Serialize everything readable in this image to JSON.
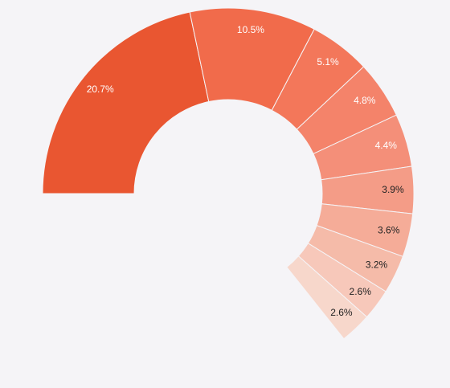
{
  "chart_data": {
    "type": "pie",
    "variant": "donut",
    "title": "",
    "values": [
      20.7,
      10.5,
      5.1,
      4.8,
      4.4,
      3.9,
      3.6,
      3.2,
      2.6,
      2.6
    ],
    "labels": [
      "20.7%",
      "10.5%",
      "5.1%",
      "4.8%",
      "4.4%",
      "3.9%",
      "3.6%",
      "3.2%",
      "2.6%",
      "2.6%"
    ],
    "colors": [
      "#e95631",
      "#f16b4b",
      "#f3775a",
      "#f4836a",
      "#f48f79",
      "#f49c87",
      "#f5ac98",
      "#f5bba9",
      "#f7c8ba",
      "#f7d7cb"
    ],
    "label_colors": [
      "#ffffff",
      "#ffffff",
      "#ffffff",
      "#ffffff",
      "#ffffff",
      "#222222",
      "#222222",
      "#222222",
      "#222222",
      "#222222"
    ],
    "start_angle_deg": 180,
    "direction": "clockwise",
    "visible_fraction": 0.643
  }
}
